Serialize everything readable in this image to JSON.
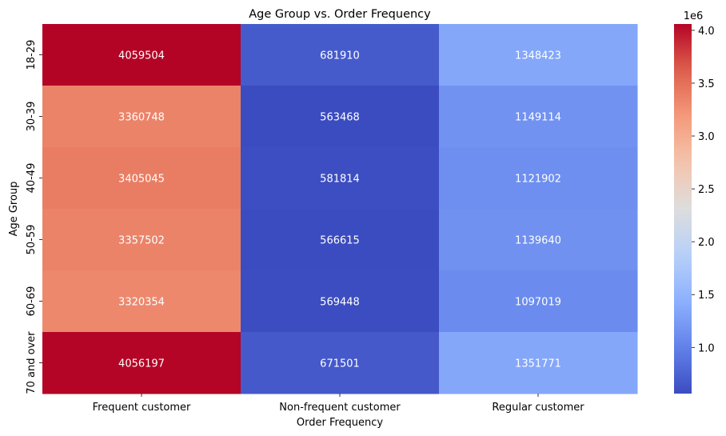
{
  "chart_data": {
    "type": "heatmap",
    "title": "Age Group vs. Order Frequency",
    "xlabel": "Order Frequency",
    "ylabel": "Age Group",
    "x_categories": [
      "Frequent customer",
      "Non-frequent customer",
      "Regular customer"
    ],
    "y_categories": [
      "18-29",
      "30-39",
      "40-49",
      "50-59",
      "60-69",
      "70 and over"
    ],
    "values": [
      [
        4059504,
        681910,
        1348423
      ],
      [
        3360748,
        563468,
        1149114
      ],
      [
        3405045,
        581814,
        1121902
      ],
      [
        3357502,
        566615,
        1139640
      ],
      [
        3320354,
        569448,
        1097019
      ],
      [
        4056197,
        671501,
        1351771
      ]
    ],
    "colormap": "coolwarm",
    "colorbar": {
      "scale_label": "1e6",
      "min": 563468,
      "max": 4059504,
      "ticks": [
        1.0,
        1.5,
        2.0,
        2.5,
        3.0,
        3.5,
        4.0
      ],
      "tick_labels": [
        "1.0",
        "1.5",
        "2.0",
        "2.5",
        "3.0",
        "3.5",
        "4.0"
      ]
    },
    "annotation_color": "#ffffff"
  }
}
